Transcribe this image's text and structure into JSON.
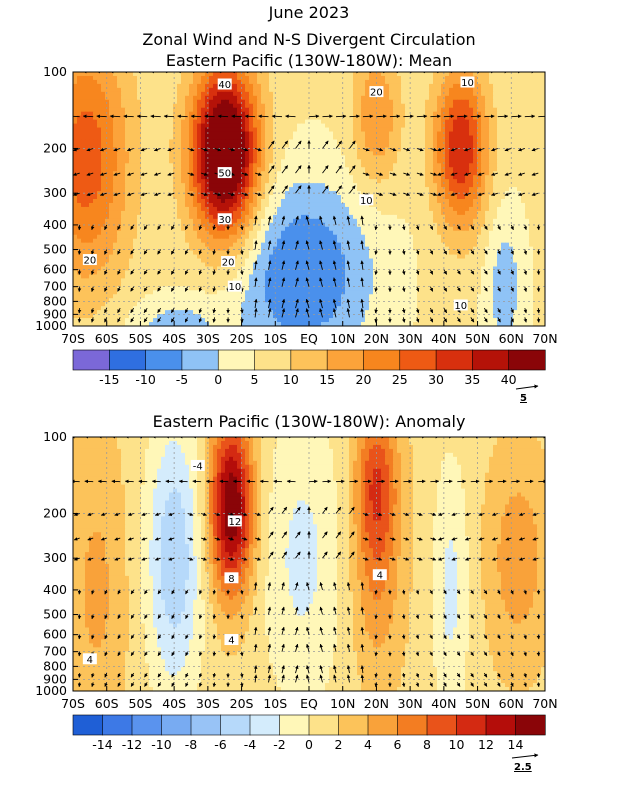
{
  "figure": {
    "title_line1": "June 2023",
    "title_line2": "Zonal Wind and N-S Divergent Circulation"
  },
  "chart_data": [
    {
      "type": "heatmap",
      "title": "Eastern Pacific (130W-180W): Mean",
      "x_ticks": [
        "70S",
        "60S",
        "50S",
        "40S",
        "30S",
        "20S",
        "10S",
        "EQ",
        "10N",
        "20N",
        "30N",
        "40N",
        "50N",
        "60N",
        "70N"
      ],
      "y_ticks": [
        "100",
        "200",
        "300",
        "400",
        "500",
        "600",
        "700",
        "800",
        "900",
        "1000"
      ],
      "y_values_hpa": [
        100,
        200,
        300,
        400,
        500,
        600,
        700,
        800,
        900,
        1000
      ],
      "y_scale": "log (pressure, inverted)",
      "colorbar_levels": [
        -20,
        -15,
        -10,
        -5,
        0,
        5,
        10,
        15,
        20,
        25,
        30,
        35,
        40,
        45
      ],
      "colorbar_labels": [
        "-15",
        "-10",
        "-5",
        "0",
        "5",
        "10",
        "15",
        "20",
        "25",
        "30",
        "35",
        "40"
      ],
      "colorbar_colors": [
        "#7b68d8",
        "#2f6fe0",
        "#4a90ec",
        "#8fc3f6",
        "#fff7b8",
        "#fde28a",
        "#fdc35a",
        "#fca33a",
        "#f7861e",
        "#ee5a14",
        "#d8300e",
        "#b51208",
        "#8a0508"
      ],
      "vector_reference": "5",
      "contour_labels": [
        "40",
        "50",
        "30",
        "20",
        "20",
        "10",
        "10",
        "20",
        "10",
        "10"
      ],
      "maxima": [
        {
          "lat": -25,
          "p": 200,
          "value": 50
        },
        {
          "lat": 45,
          "p": 200,
          "value": 30
        },
        {
          "lat": 20,
          "p": 150,
          "value": 15
        },
        {
          "lat": -65,
          "p": 200,
          "value": 25
        }
      ],
      "minima": [
        {
          "lat": 0,
          "p": 600,
          "value": -10
        }
      ]
    },
    {
      "type": "heatmap",
      "title": "Eastern Pacific (130W-180W): Anomaly",
      "x_ticks": [
        "70S",
        "60S",
        "50S",
        "40S",
        "30S",
        "20S",
        "10S",
        "EQ",
        "10N",
        "20N",
        "30N",
        "40N",
        "50N",
        "60N",
        "70N"
      ],
      "y_ticks": [
        "100",
        "200",
        "300",
        "400",
        "500",
        "600",
        "700",
        "800",
        "900",
        "1000"
      ],
      "y_values_hpa": [
        100,
        200,
        300,
        400,
        500,
        600,
        700,
        800,
        900,
        1000
      ],
      "y_scale": "log (pressure, inverted)",
      "colorbar_levels": [
        -16,
        -14,
        -12,
        -10,
        -8,
        -6,
        -4,
        -2,
        0,
        2,
        4,
        6,
        8,
        10,
        12,
        14,
        16
      ],
      "colorbar_labels": [
        "-14",
        "-12",
        "-10",
        "-8",
        "-6",
        "-4",
        "-2",
        "0",
        "2",
        "4",
        "6",
        "8",
        "10",
        "12",
        "14"
      ],
      "colorbar_colors": [
        "#1f5fd6",
        "#3d79e6",
        "#5a93ee",
        "#78abf2",
        "#98c3f6",
        "#b6d9fa",
        "#d4ecfc",
        "#fff7b8",
        "#fde28a",
        "#fcc35a",
        "#f9a23a",
        "#f37d22",
        "#e9531a",
        "#d42a12",
        "#b40d0a",
        "#8a0508"
      ],
      "vector_reference": "2.5",
      "contour_labels": [
        "-4",
        "12",
        "8",
        "4",
        "4",
        "4"
      ],
      "maxima": [
        {
          "lat": -23,
          "p": 200,
          "value": 14
        },
        {
          "lat": 20,
          "p": 150,
          "value": 8
        },
        {
          "lat": 60,
          "p": 300,
          "value": 4
        }
      ],
      "minima": [
        {
          "lat": -40,
          "p": 300,
          "value": -6
        },
        {
          "lat": 0,
          "p": 300,
          "value": -2
        }
      ]
    }
  ]
}
